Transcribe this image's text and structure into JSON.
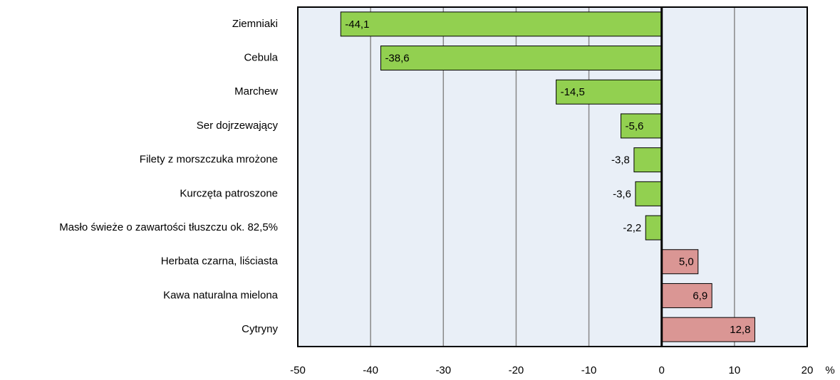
{
  "chart_data": {
    "type": "bar",
    "orientation": "horizontal",
    "categories": [
      "Ziemniaki",
      "Cebula",
      "Marchew",
      "Ser dojrzewający",
      "Filety z morszczuka mrożone",
      "Kurczęta patroszone",
      "Masło świeże o zawartości tłuszczu ok. 82,5%",
      "Herbata czarna, liściasta",
      "Kawa naturalna mielona",
      "Cytryny"
    ],
    "values": [
      -44.1,
      -38.6,
      -14.5,
      -5.6,
      -3.8,
      -3.6,
      -2.2,
      5.0,
      6.9,
      12.8
    ],
    "value_labels": [
      "-44,1",
      "-38,6",
      "-14,5",
      "-5,6",
      "-3,8",
      "-3,6",
      "-2,2",
      "5,0",
      "6,9",
      "12,8"
    ],
    "colors": [
      "#92d050",
      "#92d050",
      "#92d050",
      "#92d050",
      "#92d050",
      "#92d050",
      "#92d050",
      "#da9694",
      "#da9694",
      "#da9694"
    ],
    "x_label": "%",
    "xlim": [
      -50,
      20
    ],
    "xticks": [
      -50,
      -40,
      -30,
      -20,
      -10,
      0,
      10,
      20
    ],
    "grid": true
  }
}
